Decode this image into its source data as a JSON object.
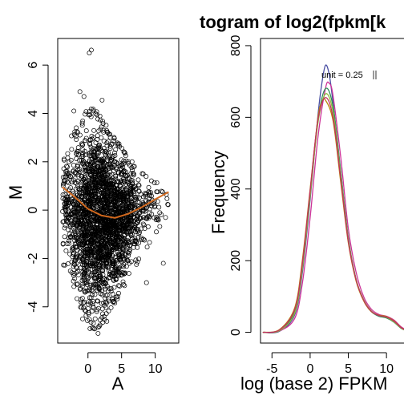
{
  "chart_data": [
    {
      "type": "scatter",
      "title": "",
      "xlabel": "A",
      "ylabel": "M",
      "xlim": [
        -4.5,
        13.5
      ],
      "ylim": [
        -5.5,
        7.1
      ],
      "x_ticks": [
        0,
        5,
        10
      ],
      "y_ticks": [
        -4,
        -2,
        0,
        2,
        4,
        6
      ],
      "grid": false,
      "point_style": "open circles",
      "point_color": "#000000",
      "scatter_envelope": {
        "x": [
          -3.8,
          -2.8,
          -2.0,
          -1.0,
          0.0,
          1.0,
          2.0,
          3.0,
          4.0,
          5.0,
          6.0,
          7.0,
          8.0,
          9.0,
          10.0,
          11.0,
          12.0
        ],
        "y_upper": [
          2.5,
          3.0,
          3.3,
          3.8,
          4.2,
          4.2,
          3.9,
          3.4,
          3.0,
          2.6,
          2.3,
          2.0,
          1.8,
          1.6,
          1.4,
          1.0,
          0.8
        ],
        "y_lower": [
          -2.2,
          -3.0,
          -3.6,
          -4.2,
          -4.8,
          -5.0,
          -4.8,
          -4.4,
          -3.9,
          -3.4,
          -2.9,
          -2.4,
          -2.0,
          -1.6,
          -1.2,
          -0.6,
          -0.1
        ]
      },
      "outliers": [
        {
          "x": 0.2,
          "y": 6.5
        },
        {
          "x": 0.5,
          "y": 6.62
        },
        {
          "x": -1.2,
          "y": 4.9
        },
        {
          "x": -0.6,
          "y": 4.7
        },
        {
          "x": 2.1,
          "y": 4.55
        },
        {
          "x": -2.1,
          "y": 4.1
        },
        {
          "x": 1.5,
          "y": -5.1
        },
        {
          "x": 0.3,
          "y": -4.9
        },
        {
          "x": 2.8,
          "y": -4.6
        },
        {
          "x": -0.8,
          "y": -4.5
        },
        {
          "x": 8.7,
          "y": -3.0
        },
        {
          "x": 11.2,
          "y": -2.2
        }
      ],
      "loess_fit": {
        "color": "#d2691e",
        "x": [
          -3.8,
          -2.0,
          0.0,
          2.0,
          4.0,
          6.0,
          8.0,
          10.0,
          12.0
        ],
        "y": [
          0.95,
          0.55,
          0.05,
          -0.22,
          -0.32,
          -0.15,
          0.12,
          0.45,
          0.75
        ]
      }
    },
    {
      "type": "line",
      "title": "togram of log2(fpkm[k",
      "xlabel": "log (base 2) FPKM",
      "ylabel": "Frequency",
      "xlim": [
        -6.5,
        14.5
      ],
      "ylim": [
        -30,
        820
      ],
      "x_ticks": [
        -5,
        0,
        5,
        10
      ],
      "y_ticks": [
        0,
        200,
        400,
        600,
        800
      ],
      "grid": false,
      "annotation": "unit = 0.25",
      "annotation_placement": "top-right",
      "series": [
        {
          "color": "#4a4fa3",
          "values": [
            [
              -6.2,
              0
            ],
            [
              -4,
              3
            ],
            [
              -2,
              50
            ],
            [
              -1,
              170
            ],
            [
              0,
              370
            ],
            [
              1,
              600
            ],
            [
              1.5,
              690
            ],
            [
              2,
              745
            ],
            [
              2.5,
              720
            ],
            [
              3,
              640
            ],
            [
              4,
              450
            ],
            [
              5,
              260
            ],
            [
              6,
              150
            ],
            [
              7,
              90
            ],
            [
              8,
              60
            ],
            [
              9,
              45
            ],
            [
              10,
              42
            ],
            [
              11,
              30
            ],
            [
              12,
              12
            ],
            [
              13,
              4
            ],
            [
              14.3,
              1
            ]
          ]
        },
        {
          "color": "#cc3399",
          "values": [
            [
              -6.2,
              0
            ],
            [
              -4,
              4
            ],
            [
              -2,
              40
            ],
            [
              -1,
              140
            ],
            [
              0,
              320
            ],
            [
              1,
              540
            ],
            [
              2,
              680
            ],
            [
              2.5,
              695
            ],
            [
              3,
              660
            ],
            [
              4,
              490
            ],
            [
              5,
              290
            ],
            [
              6,
              170
            ],
            [
              7,
              100
            ],
            [
              8,
              65
            ],
            [
              9,
              50
            ],
            [
              10,
              45
            ],
            [
              11,
              34
            ],
            [
              12,
              14
            ],
            [
              13,
              5
            ],
            [
              14.3,
              1
            ]
          ]
        },
        {
          "color": "#2e8b57",
          "values": [
            [
              -6.2,
              0
            ],
            [
              -4,
              6
            ],
            [
              -2,
              60
            ],
            [
              -1,
              190
            ],
            [
              0,
              390
            ],
            [
              1,
              590
            ],
            [
              2,
              680
            ],
            [
              3,
              630
            ],
            [
              4,
              450
            ],
            [
              5,
              265
            ],
            [
              6,
              150
            ],
            [
              7,
              90
            ],
            [
              8,
              58
            ],
            [
              9,
              45
            ],
            [
              10,
              40
            ],
            [
              11,
              28
            ],
            [
              12,
              10
            ],
            [
              13,
              3
            ],
            [
              14.3,
              1
            ]
          ]
        },
        {
          "color": "#8fbc3a",
          "values": [
            [
              -6.2,
              0
            ],
            [
              -4,
              5
            ],
            [
              -2,
              55
            ],
            [
              -1,
              180
            ],
            [
              0,
              380
            ],
            [
              1,
              580
            ],
            [
              2,
              665
            ],
            [
              3,
              615
            ],
            [
              4,
              440
            ],
            [
              5,
              260
            ],
            [
              6,
              150
            ],
            [
              7,
              92
            ],
            [
              8,
              60
            ],
            [
              9,
              47
            ],
            [
              10,
              42
            ],
            [
              11,
              29
            ],
            [
              12,
              11
            ],
            [
              13,
              3
            ],
            [
              14.3,
              1
            ]
          ]
        },
        {
          "color": "#b8860b",
          "values": [
            [
              -6.2,
              0
            ],
            [
              -4,
              8
            ],
            [
              -2,
              70
            ],
            [
              -1,
              205
            ],
            [
              0,
              400
            ],
            [
              1,
              595
            ],
            [
              1.5,
              640
            ],
            [
              2,
              648
            ],
            [
              3,
              590
            ],
            [
              4,
              420
            ],
            [
              5,
              250
            ],
            [
              6,
              145
            ],
            [
              7,
              88
            ],
            [
              8,
              58
            ],
            [
              9,
              48
            ],
            [
              10,
              44
            ],
            [
              11,
              32
            ],
            [
              12,
              12
            ],
            [
              13,
              4
            ],
            [
              14.3,
              1
            ]
          ]
        },
        {
          "color": "#c03060",
          "values": [
            [
              -6.2,
              0
            ],
            [
              -4,
              7
            ],
            [
              -2,
              65
            ],
            [
              -1,
              195
            ],
            [
              0,
              395
            ],
            [
              1,
              590
            ],
            [
              2,
              655
            ],
            [
              3,
              600
            ],
            [
              4,
              430
            ],
            [
              5,
              255
            ],
            [
              6,
              148
            ],
            [
              7,
              90
            ],
            [
              8,
              59
            ],
            [
              9,
              47
            ],
            [
              10,
              43
            ],
            [
              11,
              31
            ],
            [
              12,
              12
            ],
            [
              13,
              4
            ],
            [
              14.3,
              1
            ]
          ]
        }
      ]
    }
  ]
}
